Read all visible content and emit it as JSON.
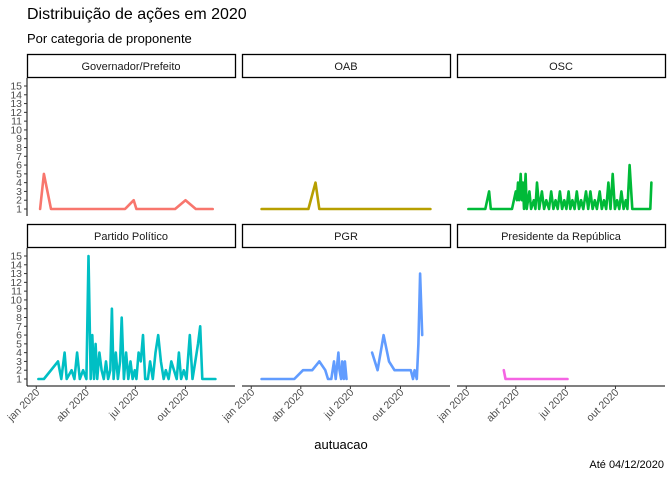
{
  "chart_data": {
    "type": "line",
    "title": "Distribuição de ações em 2020",
    "subtitle": "Por categoria de proponente",
    "xlabel": "autuacao",
    "ylabel": "",
    "caption": "Até 04/12/2020",
    "ylim": [
      1,
      15
    ],
    "y_ticks": [
      1,
      2,
      3,
      4,
      5,
      6,
      7,
      8,
      9,
      10,
      11,
      12,
      13,
      14,
      15
    ],
    "xlim": [
      "2019-12-15",
      "2020-12-31"
    ],
    "x_ticks": [
      {
        "date": "2020-01-01",
        "label": "jan 2020"
      },
      {
        "date": "2020-04-01",
        "label": "abr 2020"
      },
      {
        "date": "2020-07-01",
        "label": "jul 2020"
      },
      {
        "date": "2020-10-01",
        "label": "out 2020"
      }
    ],
    "grid": false,
    "legend": "none",
    "facets": [
      {
        "name": "Governador/Prefeito",
        "color": "#F8766D",
        "points": [
          [
            "2020-01-08",
            1
          ],
          [
            "2020-01-15",
            5
          ],
          [
            "2020-01-28",
            1
          ],
          [
            "2020-02-15",
            1
          ],
          [
            "2020-04-15",
            1
          ],
          [
            "2020-05-20",
            1
          ],
          [
            "2020-06-12",
            1
          ],
          [
            "2020-06-28",
            2
          ],
          [
            "2020-07-03",
            1
          ],
          [
            "2020-08-20",
            1
          ],
          [
            "2020-09-12",
            1
          ],
          [
            "2020-10-01",
            2
          ],
          [
            "2020-10-20",
            1
          ],
          [
            "2020-11-20",
            1
          ]
        ]
      },
      {
        "name": "OAB",
        "color": "#B79F00",
        "points": [
          [
            "2020-01-20",
            1
          ],
          [
            "2020-03-25",
            1
          ],
          [
            "2020-04-15",
            1
          ],
          [
            "2020-04-28",
            4
          ],
          [
            "2020-05-05",
            1
          ],
          [
            "2020-06-10",
            1
          ],
          [
            "2020-08-15",
            1
          ],
          [
            "2020-10-15",
            1
          ],
          [
            "2020-11-25",
            1
          ]
        ]
      },
      {
        "name": "OSC",
        "color": "#00BA38",
        "points": [
          [
            "2020-01-05",
            1
          ],
          [
            "2020-02-05",
            1
          ],
          [
            "2020-02-12",
            3
          ],
          [
            "2020-02-15",
            1
          ],
          [
            "2020-03-01",
            1
          ],
          [
            "2020-03-25",
            1
          ],
          [
            "2020-04-01",
            3
          ],
          [
            "2020-04-03",
            2
          ],
          [
            "2020-04-05",
            4
          ],
          [
            "2020-04-07",
            2
          ],
          [
            "2020-04-10",
            5
          ],
          [
            "2020-04-12",
            2
          ],
          [
            "2020-04-14",
            4
          ],
          [
            "2020-04-16",
            1
          ],
          [
            "2020-04-19",
            5
          ],
          [
            "2020-04-21",
            1
          ],
          [
            "2020-04-26",
            3
          ],
          [
            "2020-04-29",
            1
          ],
          [
            "2020-05-04",
            2
          ],
          [
            "2020-05-07",
            1
          ],
          [
            "2020-05-10",
            4
          ],
          [
            "2020-05-14",
            1
          ],
          [
            "2020-05-19",
            3
          ],
          [
            "2020-05-23",
            1
          ],
          [
            "2020-05-27",
            2
          ],
          [
            "2020-06-01",
            1
          ],
          [
            "2020-06-05",
            3
          ],
          [
            "2020-06-09",
            1
          ],
          [
            "2020-06-13",
            2
          ],
          [
            "2020-06-17",
            1
          ],
          [
            "2020-06-21",
            3
          ],
          [
            "2020-06-25",
            1
          ],
          [
            "2020-06-29",
            2
          ],
          [
            "2020-07-03",
            1
          ],
          [
            "2020-07-07",
            3
          ],
          [
            "2020-07-10",
            1
          ],
          [
            "2020-07-14",
            2
          ],
          [
            "2020-07-18",
            1
          ],
          [
            "2020-07-22",
            3
          ],
          [
            "2020-07-26",
            1
          ],
          [
            "2020-07-30",
            2
          ],
          [
            "2020-08-03",
            1
          ],
          [
            "2020-08-08",
            3
          ],
          [
            "2020-08-12",
            1
          ],
          [
            "2020-08-16",
            3
          ],
          [
            "2020-08-20",
            1
          ],
          [
            "2020-08-24",
            2
          ],
          [
            "2020-08-28",
            1
          ],
          [
            "2020-09-02",
            3
          ],
          [
            "2020-09-06",
            1
          ],
          [
            "2020-09-10",
            2
          ],
          [
            "2020-09-14",
            1
          ],
          [
            "2020-09-18",
            4
          ],
          [
            "2020-09-22",
            1
          ],
          [
            "2020-09-26",
            5
          ],
          [
            "2020-09-30",
            1
          ],
          [
            "2020-10-04",
            2
          ],
          [
            "2020-10-08",
            1
          ],
          [
            "2020-10-12",
            3
          ],
          [
            "2020-10-16",
            1
          ],
          [
            "2020-10-20",
            2
          ],
          [
            "2020-10-23",
            1
          ],
          [
            "2020-10-27",
            6
          ],
          [
            "2020-11-01",
            1
          ],
          [
            "2020-11-10",
            1
          ],
          [
            "2020-11-25",
            1
          ],
          [
            "2020-12-04",
            1
          ],
          [
            "2020-12-06",
            4
          ]
        ]
      },
      {
        "name": "Partido Político",
        "color": "#00BFC4",
        "points": [
          [
            "2020-01-05",
            1
          ],
          [
            "2020-01-15",
            1
          ],
          [
            "2020-02-10",
            3
          ],
          [
            "2020-02-16",
            1
          ],
          [
            "2020-02-22",
            4
          ],
          [
            "2020-02-26",
            1
          ],
          [
            "2020-03-06",
            2
          ],
          [
            "2020-03-11",
            1
          ],
          [
            "2020-03-16",
            4
          ],
          [
            "2020-03-21",
            1
          ],
          [
            "2020-03-27",
            2
          ],
          [
            "2020-04-02",
            1
          ],
          [
            "2020-04-06",
            15
          ],
          [
            "2020-04-10",
            1
          ],
          [
            "2020-04-13",
            6
          ],
          [
            "2020-04-16",
            1
          ],
          [
            "2020-04-19",
            5
          ],
          [
            "2020-04-22",
            1
          ],
          [
            "2020-04-26",
            4
          ],
          [
            "2020-04-30",
            2
          ],
          [
            "2020-05-04",
            1
          ],
          [
            "2020-05-08",
            3
          ],
          [
            "2020-05-12",
            1
          ],
          [
            "2020-05-16",
            2
          ],
          [
            "2020-05-19",
            9
          ],
          [
            "2020-05-22",
            1
          ],
          [
            "2020-05-26",
            4
          ],
          [
            "2020-05-30",
            1
          ],
          [
            "2020-06-03",
            3
          ],
          [
            "2020-06-06",
            8
          ],
          [
            "2020-06-10",
            1
          ],
          [
            "2020-06-14",
            4
          ],
          [
            "2020-06-18",
            1
          ],
          [
            "2020-06-22",
            3
          ],
          [
            "2020-06-26",
            1
          ],
          [
            "2020-06-30",
            2
          ],
          [
            "2020-07-03",
            1
          ],
          [
            "2020-07-07",
            4
          ],
          [
            "2020-07-11",
            3
          ],
          [
            "2020-07-15",
            6
          ],
          [
            "2020-07-19",
            1
          ],
          [
            "2020-07-24",
            1
          ],
          [
            "2020-07-28",
            3
          ],
          [
            "2020-08-02",
            1
          ],
          [
            "2020-08-07",
            4
          ],
          [
            "2020-08-12",
            6
          ],
          [
            "2020-08-17",
            3
          ],
          [
            "2020-08-22",
            1
          ],
          [
            "2020-08-26",
            2
          ],
          [
            "2020-08-31",
            1
          ],
          [
            "2020-09-05",
            3
          ],
          [
            "2020-09-10",
            2
          ],
          [
            "2020-09-15",
            1
          ],
          [
            "2020-09-19",
            4
          ],
          [
            "2020-09-23",
            1
          ],
          [
            "2020-09-28",
            2
          ],
          [
            "2020-10-03",
            1
          ],
          [
            "2020-10-09",
            6
          ],
          [
            "2020-10-14",
            1
          ],
          [
            "2020-10-19",
            3
          ],
          [
            "2020-10-24",
            5
          ],
          [
            "2020-10-28",
            7
          ],
          [
            "2020-11-01",
            1
          ],
          [
            "2020-11-10",
            1
          ],
          [
            "2020-11-25",
            1
          ]
        ]
      },
      {
        "name": "PGR",
        "color": "#619CFF",
        "points": [
          [
            "2020-01-20",
            1
          ],
          [
            "2020-02-10",
            1
          ],
          [
            "2020-03-01",
            1
          ],
          [
            "2020-03-20",
            1
          ],
          [
            "2020-04-05",
            2
          ],
          [
            "2020-04-22",
            2
          ],
          [
            "2020-05-05",
            3
          ],
          [
            "2020-05-16",
            2
          ],
          [
            "2020-05-21",
            1
          ],
          [
            "2020-05-27",
            1
          ],
          [
            "2020-06-01",
            3
          ],
          [
            "2020-06-04",
            1
          ],
          [
            "2020-06-09",
            4
          ],
          [
            "2020-06-11",
            2
          ],
          [
            "2020-06-14",
            1
          ],
          [
            "2020-06-16",
            3
          ],
          [
            "2020-06-19",
            1
          ],
          [
            "2020-06-21",
            3
          ],
          [
            "2020-06-24",
            1
          ],
          null,
          [
            "2020-08-10",
            4
          ],
          [
            "2020-08-20",
            2
          ],
          [
            "2020-08-31",
            6
          ],
          [
            "2020-09-10",
            3
          ],
          [
            "2020-09-20",
            2
          ],
          [
            "2020-10-05",
            2
          ],
          [
            "2020-10-20",
            2
          ],
          [
            "2020-10-24",
            1
          ],
          [
            "2020-10-27",
            2
          ],
          [
            "2020-10-31",
            1
          ],
          [
            "2020-11-03",
            5
          ],
          [
            "2020-11-06",
            13
          ],
          [
            "2020-11-10",
            6
          ]
        ]
      },
      {
        "name": "Presidente da República",
        "color": "#F564E3",
        "points": [
          [
            "2020-03-10",
            2
          ],
          [
            "2020-03-13",
            1
          ],
          [
            "2020-04-15",
            1
          ],
          [
            "2020-05-15",
            1
          ],
          [
            "2020-06-10",
            1
          ],
          [
            "2020-06-22",
            1
          ],
          [
            "2020-07-05",
            1
          ]
        ]
      }
    ]
  }
}
